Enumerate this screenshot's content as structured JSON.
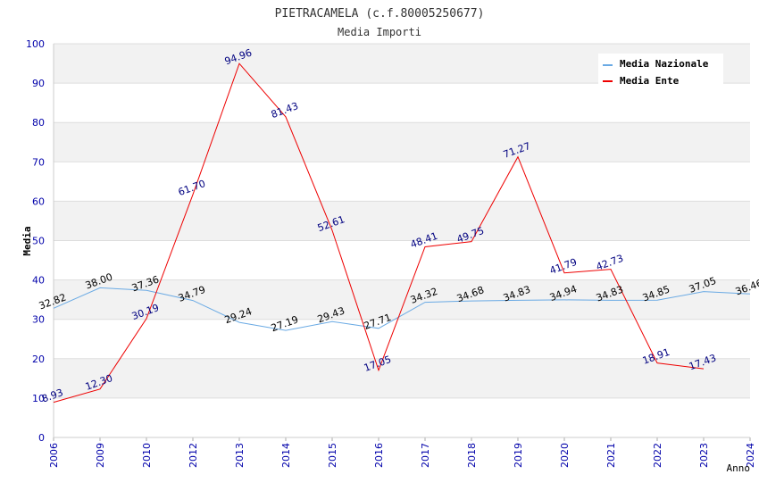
{
  "chart_data": {
    "type": "line",
    "title": "PIETRACAMELA (c.f.80005250677)",
    "subtitle": "Media Importi",
    "xlabel": "Anno",
    "ylabel": "Media",
    "categories": [
      "2006",
      "2009",
      "2010",
      "2012",
      "2013",
      "2014",
      "2015",
      "2016",
      "2017",
      "2018",
      "2019",
      "2020",
      "2021",
      "2022",
      "2023",
      "2024"
    ],
    "yticks": [
      0,
      10,
      20,
      30,
      40,
      50,
      60,
      70,
      80,
      90,
      100
    ],
    "ylim": [
      0,
      100
    ],
    "grid": true,
    "legend_position": "top-right",
    "series": [
      {
        "name": "Media Nazionale",
        "color": "#6aaae4",
        "label_color": "#000000",
        "values": [
          32.82,
          38.0,
          37.36,
          34.79,
          29.24,
          27.19,
          29.43,
          27.71,
          34.32,
          34.68,
          34.83,
          34.94,
          34.83,
          34.85,
          37.05,
          36.46
        ],
        "labels": [
          "32.82",
          "38.00",
          "37.36",
          "34.79",
          "29.24",
          "27.19",
          "29.43",
          "27.71",
          "34.32",
          "34.68",
          "34.83",
          "34.94",
          "34.83",
          "34.85",
          "37.05",
          "36.46"
        ]
      },
      {
        "name": "Media Ente",
        "color": "#ee0000",
        "label_color": "#000080",
        "values": [
          8.93,
          12.3,
          30.19,
          61.7,
          94.96,
          81.43,
          52.61,
          17.05,
          48.41,
          49.75,
          71.27,
          41.79,
          42.73,
          18.91,
          17.43,
          null
        ],
        "labels": [
          "8.93",
          "12.30",
          "30.19",
          "61.70",
          "94.96",
          "81.43",
          "52.61",
          "17.05",
          "48.41",
          "49.75",
          "71.27",
          "41.79",
          "42.73",
          "18.91",
          "17.43",
          ""
        ]
      }
    ]
  }
}
